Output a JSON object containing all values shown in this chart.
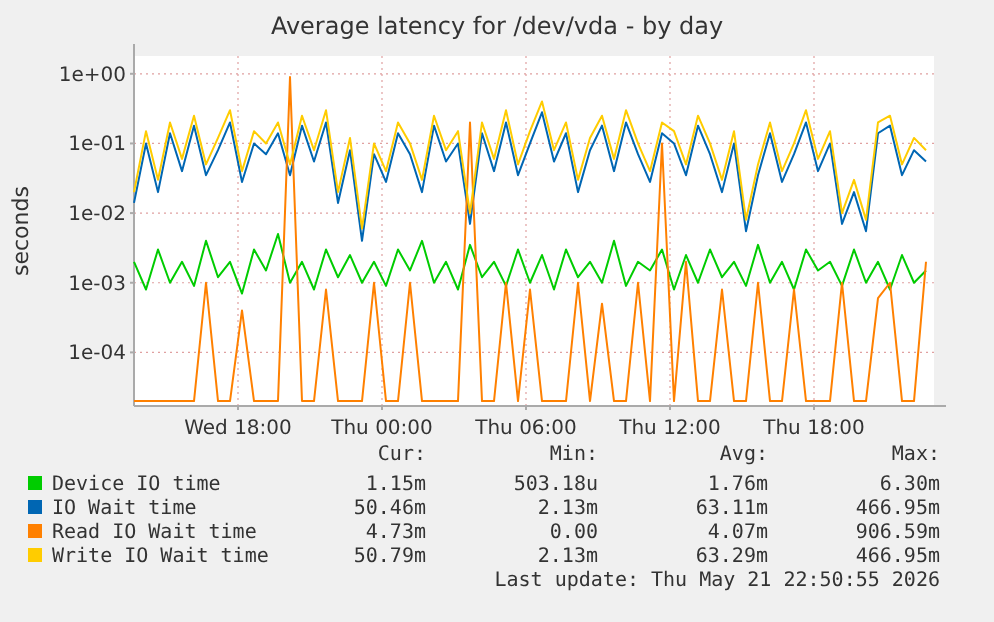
{
  "chart_data": {
    "type": "line",
    "title": "Average latency for /dev/vda - by day",
    "ylabel": "seconds",
    "log": "y",
    "grid": true,
    "legend": "bottom",
    "line_style": "solid",
    "xlim": [
      "2026-05-20T13:40",
      "2026-05-21T23:00"
    ],
    "xticks": [
      {
        "value": "2026-05-20T18:00",
        "label": "Wed 18:00"
      },
      {
        "value": "2026-05-21T00:00",
        "label": "Thu 00:00"
      },
      {
        "value": "2026-05-21T06:00",
        "label": "Thu 06:00"
      },
      {
        "value": "2026-05-21T12:00",
        "label": "Thu 12:00"
      },
      {
        "value": "2026-05-21T18:00",
        "label": "Thu 18:00"
      }
    ],
    "ylim": [
      1.7e-05,
      1.8
    ],
    "yticks": [
      {
        "value": 0.0001,
        "label": "1e-04"
      },
      {
        "value": 0.001,
        "label": "1e-03"
      },
      {
        "value": 0.01,
        "label": "1e-02"
      },
      {
        "value": 0.1,
        "label": "1e-01"
      },
      {
        "value": 1,
        "label": "1e+00"
      }
    ],
    "x": [
      "2026-05-20T13:40",
      "2026-05-20T14:10",
      "2026-05-20T14:40",
      "2026-05-20T15:10",
      "2026-05-20T15:40",
      "2026-05-20T16:10",
      "2026-05-20T16:40",
      "2026-05-20T17:10",
      "2026-05-20T17:40",
      "2026-05-20T18:10",
      "2026-05-20T18:40",
      "2026-05-20T19:10",
      "2026-05-20T19:40",
      "2026-05-20T20:10",
      "2026-05-20T20:40",
      "2026-05-20T21:10",
      "2026-05-20T21:40",
      "2026-05-20T22:10",
      "2026-05-20T22:40",
      "2026-05-20T23:10",
      "2026-05-20T23:40",
      "2026-05-21T00:10",
      "2026-05-21T00:40",
      "2026-05-21T01:10",
      "2026-05-21T01:40",
      "2026-05-21T02:10",
      "2026-05-21T02:40",
      "2026-05-21T03:10",
      "2026-05-21T03:40",
      "2026-05-21T04:10",
      "2026-05-21T04:40",
      "2026-05-21T05:10",
      "2026-05-21T05:40",
      "2026-05-21T06:10",
      "2026-05-21T06:40",
      "2026-05-21T07:10",
      "2026-05-21T07:40",
      "2026-05-21T08:10",
      "2026-05-21T08:40",
      "2026-05-21T09:10",
      "2026-05-21T09:40",
      "2026-05-21T10:10",
      "2026-05-21T10:40",
      "2026-05-21T11:10",
      "2026-05-21T11:40",
      "2026-05-21T12:10",
      "2026-05-21T12:40",
      "2026-05-21T13:10",
      "2026-05-21T13:40",
      "2026-05-21T14:10",
      "2026-05-21T14:40",
      "2026-05-21T15:10",
      "2026-05-21T15:40",
      "2026-05-21T16:10",
      "2026-05-21T16:40",
      "2026-05-21T17:10",
      "2026-05-21T17:40",
      "2026-05-21T18:10",
      "2026-05-21T18:40",
      "2026-05-21T19:10",
      "2026-05-21T19:40",
      "2026-05-21T20:10",
      "2026-05-21T20:40",
      "2026-05-21T21:10",
      "2026-05-21T21:40",
      "2026-05-21T22:10",
      "2026-05-21T22:40"
    ],
    "series": [
      {
        "name": "Device IO time",
        "color": "#00cc00",
        "values": [
          0.002,
          0.0008,
          0.003,
          0.001,
          0.002,
          0.0009,
          0.004,
          0.0012,
          0.002,
          0.0007,
          0.003,
          0.0015,
          0.005,
          0.001,
          0.002,
          0.0008,
          0.003,
          0.0012,
          0.0025,
          0.001,
          0.002,
          0.0009,
          0.003,
          0.0015,
          0.004,
          0.001,
          0.002,
          0.0008,
          0.0035,
          0.0012,
          0.002,
          0.0009,
          0.003,
          0.001,
          0.0025,
          0.0008,
          0.003,
          0.0012,
          0.002,
          0.001,
          0.004,
          0.0009,
          0.002,
          0.0015,
          0.003,
          0.0008,
          0.0025,
          0.001,
          0.003,
          0.0012,
          0.002,
          0.0009,
          0.0035,
          0.001,
          0.002,
          0.0008,
          0.003,
          0.0015,
          0.002,
          0.0009,
          0.003,
          0.001,
          0.002,
          0.0008,
          0.0025,
          0.001,
          0.0015
        ]
      },
      {
        "name": "IO Wait time",
        "color": "#0066b3",
        "values": [
          0.014,
          0.1,
          0.02,
          0.14,
          0.04,
          0.18,
          0.035,
          0.08,
          0.2,
          0.028,
          0.1,
          0.07,
          0.14,
          0.035,
          0.18,
          0.055,
          0.2,
          0.014,
          0.08,
          0.004,
          0.07,
          0.028,
          0.14,
          0.07,
          0.02,
          0.18,
          0.055,
          0.1,
          0.007,
          0.14,
          0.04,
          0.2,
          0.035,
          0.1,
          0.28,
          0.055,
          0.14,
          0.02,
          0.08,
          0.18,
          0.04,
          0.2,
          0.07,
          0.028,
          0.14,
          0.1,
          0.035,
          0.18,
          0.07,
          0.02,
          0.1,
          0.0055,
          0.035,
          0.14,
          0.028,
          0.07,
          0.2,
          0.04,
          0.1,
          0.007,
          0.02,
          0.0055,
          0.14,
          0.18,
          0.035,
          0.08,
          0.055
        ]
      },
      {
        "name": "Read IO Wait time",
        "color": "#ff8000",
        "values": [
          2e-05,
          2e-05,
          2e-05,
          2e-05,
          2e-05,
          2e-05,
          0.001,
          2e-05,
          2e-05,
          0.0004,
          2e-05,
          2e-05,
          2e-05,
          0.9,
          2e-05,
          2e-05,
          0.0008,
          2e-05,
          2e-05,
          2e-05,
          0.001,
          2e-05,
          2e-05,
          0.001,
          2e-05,
          2e-05,
          2e-05,
          2e-05,
          0.2,
          2e-05,
          2e-05,
          0.001,
          2e-05,
          0.0008,
          2e-05,
          2e-05,
          2e-05,
          0.001,
          2e-05,
          0.0005,
          2e-05,
          2e-05,
          0.001,
          2e-05,
          0.1,
          2e-05,
          0.002,
          2e-05,
          2e-05,
          0.0008,
          2e-05,
          2e-05,
          0.001,
          2e-05,
          2e-05,
          0.0008,
          2e-05,
          2e-05,
          2e-05,
          0.001,
          2e-05,
          2e-05,
          0.0006,
          0.001,
          2e-05,
          2e-05,
          0.002
        ]
      },
      {
        "name": "Write IO Wait time",
        "color": "#ffcc00",
        "values": [
          0.02,
          0.15,
          0.03,
          0.2,
          0.06,
          0.25,
          0.05,
          0.12,
          0.3,
          0.04,
          0.15,
          0.1,
          0.2,
          0.05,
          0.25,
          0.08,
          0.3,
          0.02,
          0.12,
          0.006,
          0.1,
          0.04,
          0.2,
          0.1,
          0.03,
          0.25,
          0.08,
          0.15,
          0.01,
          0.2,
          0.06,
          0.3,
          0.05,
          0.15,
          0.4,
          0.08,
          0.2,
          0.03,
          0.12,
          0.25,
          0.06,
          0.3,
          0.1,
          0.04,
          0.2,
          0.15,
          0.05,
          0.25,
          0.1,
          0.03,
          0.15,
          0.008,
          0.05,
          0.2,
          0.04,
          0.1,
          0.3,
          0.06,
          0.15,
          0.01,
          0.03,
          0.008,
          0.2,
          0.25,
          0.05,
          0.12,
          0.08
        ]
      }
    ],
    "annotations": [
      "Cur:",
      "Min:",
      "Avg:",
      "Max:",
      "1.15m",
      "503.18u",
      "1.76m",
      "6.30m",
      "50.46m",
      "2.13m",
      "63.11m",
      "466.95m",
      "4.73m",
      "0.00",
      "4.07m",
      "906.59m",
      "50.79m",
      "2.13m",
      "63.29m",
      "466.95m",
      "Last update: Thu May 21 22:50:55 2026"
    ]
  }
}
